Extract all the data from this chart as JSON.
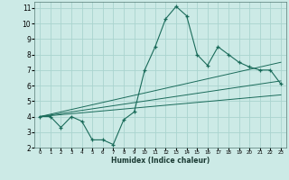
{
  "xlabel": "Humidex (Indice chaleur)",
  "bg_color": "#cceae6",
  "grid_color": "#aad4cf",
  "line_color": "#1a6b5a",
  "xlim": [
    -0.5,
    23.5
  ],
  "ylim": [
    2,
    11.4
  ],
  "xticks": [
    0,
    1,
    2,
    3,
    4,
    5,
    6,
    7,
    8,
    9,
    10,
    11,
    12,
    13,
    14,
    15,
    16,
    17,
    18,
    19,
    20,
    21,
    22,
    23
  ],
  "yticks": [
    2,
    3,
    4,
    5,
    6,
    7,
    8,
    9,
    10,
    11
  ],
  "main_x": [
    0,
    1,
    2,
    3,
    4,
    5,
    6,
    7,
    8,
    9,
    10,
    11,
    12,
    13,
    14,
    15,
    16,
    17,
    18,
    19,
    20,
    21,
    22,
    23
  ],
  "main_y": [
    4.0,
    4.0,
    3.3,
    4.0,
    3.7,
    2.5,
    2.5,
    2.2,
    3.8,
    4.3,
    7.0,
    8.5,
    10.3,
    11.1,
    10.5,
    8.0,
    7.3,
    8.5,
    8.0,
    7.5,
    7.2,
    7.0,
    7.0,
    6.1
  ],
  "line2_x": [
    0,
    23
  ],
  "line2_y": [
    4.0,
    7.5
  ],
  "line3_x": [
    0,
    23
  ],
  "line3_y": [
    4.0,
    6.3
  ],
  "line4_x": [
    0,
    23
  ],
  "line4_y": [
    4.0,
    5.4
  ]
}
